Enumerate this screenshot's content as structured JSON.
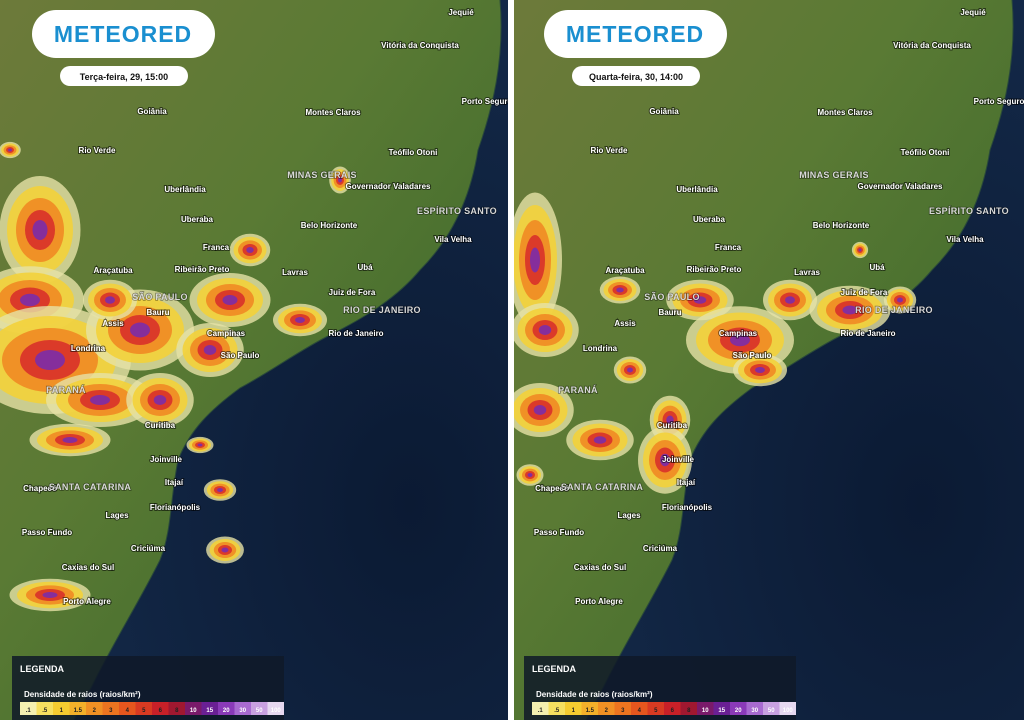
{
  "panels": [
    {
      "logo": "METEORED",
      "time": "Terça-feira, 29, 15:00"
    },
    {
      "logo": "METEORED",
      "time": "Quarta-feira, 30, 14:00"
    }
  ],
  "places": [
    "Jequié",
    "Vitória da Conquista",
    "Porto Seguro",
    "Goiânia",
    "Montes Claros",
    "Rio Verde",
    "Teófilo Otoni",
    "MINAS GERAIS",
    "Governador Valadares",
    "Uberlândia",
    "ESPÍRITO SANTO",
    "Uberaba",
    "Belo Horizonte",
    "Vila Velha",
    "Franca",
    "Ribeirão Preto",
    "Ubá",
    "Araçatuba",
    "Lavras",
    "Juiz de Fora",
    "SÃO PAULO",
    "Bauru",
    "RIO DE JANEIRO",
    "Assis",
    "Campinas",
    "Rio de Janeiro",
    "Londrina",
    "São Paulo",
    "PARANÁ",
    "Curitiba",
    "Joinville",
    "Chapecó",
    "SANTA CATARINA",
    "Itajaí",
    "Lages",
    "Florianópolis",
    "Passo Fundo",
    "Criciúma",
    "Caxias do Sul",
    "Porto Alegre"
  ],
  "legend": {
    "title": "LEGENDA",
    "subtitle": "Densidade de raios (raios/km²)",
    "scale": [
      ".1",
      ".5",
      "1",
      "1.5",
      "2",
      "3",
      "4",
      "5",
      "6",
      "8",
      "10",
      "15",
      "20",
      "30",
      "50",
      "100"
    ]
  }
}
